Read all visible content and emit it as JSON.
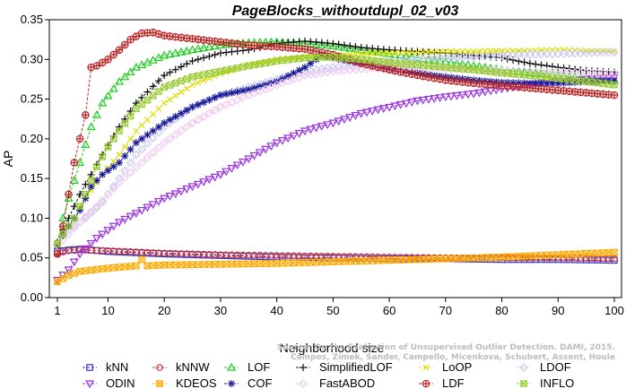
{
  "chart_data": {
    "type": "line",
    "title": "PageBlocks_withoutdupl_02_v03",
    "xlabel": "Neighborhood size",
    "ylabel": "AP",
    "xlim": [
      1,
      100
    ],
    "ylim": [
      0,
      0.35
    ],
    "x_ticks": [
      1,
      10,
      20,
      30,
      40,
      50,
      60,
      70,
      80,
      90,
      100
    ],
    "y_ticks": [
      "0.00",
      "0.05",
      "0.10",
      "0.15",
      "0.20",
      "0.25",
      "0.30",
      "0.35"
    ],
    "legend_position": "bottom",
    "credit": {
      "line1": "Source: On the Evaluation of Unsupervised Outlier Detection. DAMI, 2015.",
      "line2": "Campos, Zimek, Sander, Campello, Micenkova, Schubert, Assent, Houle"
    },
    "series": [
      {
        "name": "kNN",
        "color": "#3333cc",
        "marker": "square",
        "points": [
          [
            1,
            0.058
          ],
          [
            3,
            0.06
          ],
          [
            5,
            0.061
          ],
          [
            10,
            0.058
          ],
          [
            20,
            0.055
          ],
          [
            30,
            0.053
          ],
          [
            40,
            0.051
          ],
          [
            50,
            0.05
          ],
          [
            60,
            0.049
          ],
          [
            70,
            0.049
          ],
          [
            80,
            0.048
          ],
          [
            90,
            0.048
          ],
          [
            100,
            0.047
          ]
        ]
      },
      {
        "name": "kNNW",
        "color": "#cc3333",
        "marker": "circle",
        "points": [
          [
            1,
            0.056
          ],
          [
            3,
            0.059
          ],
          [
            5,
            0.06
          ],
          [
            10,
            0.059
          ],
          [
            20,
            0.056
          ],
          [
            30,
            0.054
          ],
          [
            40,
            0.053
          ],
          [
            50,
            0.052
          ],
          [
            60,
            0.051
          ],
          [
            70,
            0.05
          ],
          [
            80,
            0.05
          ],
          [
            90,
            0.05
          ],
          [
            100,
            0.049
          ]
        ]
      },
      {
        "name": "LOF",
        "color": "#22cc22",
        "marker": "triangle-up",
        "points": [
          [
            1,
            0.07
          ],
          [
            2,
            0.1
          ],
          [
            3,
            0.125
          ],
          [
            5,
            0.17
          ],
          [
            7,
            0.215
          ],
          [
            9,
            0.245
          ],
          [
            12,
            0.272
          ],
          [
            15,
            0.29
          ],
          [
            20,
            0.305
          ],
          [
            25,
            0.312
          ],
          [
            30,
            0.318
          ],
          [
            35,
            0.321
          ],
          [
            40,
            0.322
          ],
          [
            45,
            0.32
          ],
          [
            50,
            0.317
          ],
          [
            55,
            0.312
          ],
          [
            60,
            0.307
          ],
          [
            65,
            0.302
          ],
          [
            70,
            0.297
          ],
          [
            75,
            0.292
          ],
          [
            80,
            0.287
          ],
          [
            85,
            0.283
          ],
          [
            90,
            0.28
          ],
          [
            95,
            0.276
          ],
          [
            100,
            0.273
          ]
        ]
      },
      {
        "name": "SimplifiedLOF",
        "color": "#111111",
        "marker": "plus",
        "points": [
          [
            1,
            0.07
          ],
          [
            2,
            0.085
          ],
          [
            3,
            0.1
          ],
          [
            5,
            0.13
          ],
          [
            7,
            0.155
          ],
          [
            9,
            0.18
          ],
          [
            12,
            0.215
          ],
          [
            15,
            0.245
          ],
          [
            20,
            0.28
          ],
          [
            25,
            0.298
          ],
          [
            30,
            0.308
          ],
          [
            35,
            0.312
          ],
          [
            40,
            0.32
          ],
          [
            45,
            0.323
          ],
          [
            50,
            0.32
          ],
          [
            55,
            0.315
          ],
          [
            60,
            0.312
          ],
          [
            65,
            0.31
          ],
          [
            70,
            0.308
          ],
          [
            75,
            0.305
          ],
          [
            80,
            0.302
          ],
          [
            85,
            0.295
          ],
          [
            90,
            0.29
          ],
          [
            95,
            0.286
          ],
          [
            100,
            0.284
          ]
        ]
      },
      {
        "name": "LoOP",
        "color": "#dddd00",
        "marker": "cross",
        "points": [
          [
            1,
            0.068
          ],
          [
            2,
            0.08
          ],
          [
            4,
            0.1
          ],
          [
            6,
            0.125
          ],
          [
            9,
            0.155
          ],
          [
            12,
            0.18
          ],
          [
            15,
            0.21
          ],
          [
            20,
            0.245
          ],
          [
            25,
            0.268
          ],
          [
            30,
            0.282
          ],
          [
            35,
            0.293
          ],
          [
            40,
            0.3
          ],
          [
            45,
            0.303
          ],
          [
            50,
            0.305
          ],
          [
            55,
            0.307
          ],
          [
            60,
            0.308
          ],
          [
            65,
            0.309
          ],
          [
            70,
            0.31
          ],
          [
            75,
            0.31
          ],
          [
            80,
            0.311
          ],
          [
            85,
            0.311
          ],
          [
            90,
            0.312
          ],
          [
            95,
            0.311
          ],
          [
            100,
            0.31
          ]
        ]
      },
      {
        "name": "LDOF",
        "color": "#c9c9f0",
        "marker": "diamond",
        "points": [
          [
            1,
            0.07
          ],
          [
            2,
            0.08
          ],
          [
            4,
            0.09
          ],
          [
            6,
            0.1
          ],
          [
            9,
            0.12
          ],
          [
            12,
            0.15
          ],
          [
            15,
            0.18
          ],
          [
            20,
            0.215
          ],
          [
            25,
            0.24
          ],
          [
            30,
            0.255
          ],
          [
            35,
            0.265
          ],
          [
            40,
            0.275
          ],
          [
            45,
            0.285
          ],
          [
            50,
            0.29
          ],
          [
            55,
            0.295
          ],
          [
            60,
            0.298
          ],
          [
            65,
            0.3
          ],
          [
            70,
            0.302
          ],
          [
            75,
            0.303
          ],
          [
            80,
            0.305
          ],
          [
            85,
            0.306
          ],
          [
            90,
            0.307
          ],
          [
            95,
            0.308
          ],
          [
            100,
            0.309
          ]
        ]
      },
      {
        "name": "ODIN",
        "color": "#9933dd",
        "marker": "triangle-down",
        "points": [
          [
            1,
            0.022
          ],
          [
            3,
            0.035
          ],
          [
            5,
            0.055
          ],
          [
            8,
            0.075
          ],
          [
            12,
            0.095
          ],
          [
            16,
            0.11
          ],
          [
            20,
            0.125
          ],
          [
            25,
            0.14
          ],
          [
            30,
            0.155
          ],
          [
            35,
            0.175
          ],
          [
            40,
            0.195
          ],
          [
            45,
            0.21
          ],
          [
            50,
            0.22
          ],
          [
            55,
            0.232
          ],
          [
            60,
            0.24
          ],
          [
            65,
            0.248
          ],
          [
            70,
            0.253
          ],
          [
            75,
            0.257
          ],
          [
            80,
            0.263
          ],
          [
            85,
            0.268
          ],
          [
            90,
            0.272
          ],
          [
            95,
            0.275
          ],
          [
            100,
            0.278
          ]
        ]
      },
      {
        "name": "KDEOS",
        "color": "#ffaa00",
        "marker": "square-cross",
        "points": [
          [
            1,
            0.02
          ],
          [
            3,
            0.028
          ],
          [
            5,
            0.033
          ],
          [
            10,
            0.037
          ],
          [
            15,
            0.04
          ],
          [
            16,
            0.048
          ],
          [
            17,
            0.04
          ],
          [
            20,
            0.041
          ],
          [
            30,
            0.042
          ],
          [
            40,
            0.043
          ],
          [
            50,
            0.045
          ],
          [
            60,
            0.047
          ],
          [
            70,
            0.049
          ],
          [
            80,
            0.051
          ],
          [
            90,
            0.054
          ],
          [
            100,
            0.057
          ]
        ]
      },
      {
        "name": "COF",
        "color": "#1a1a99",
        "marker": "star",
        "points": [
          [
            1,
            0.065
          ],
          [
            2,
            0.078
          ],
          [
            3,
            0.09
          ],
          [
            5,
            0.11
          ],
          [
            7,
            0.14
          ],
          [
            9,
            0.155
          ],
          [
            12,
            0.17
          ],
          [
            15,
            0.195
          ],
          [
            20,
            0.22
          ],
          [
            25,
            0.24
          ],
          [
            30,
            0.255
          ],
          [
            35,
            0.262
          ],
          [
            40,
            0.272
          ],
          [
            45,
            0.29
          ],
          [
            48,
            0.305
          ],
          [
            50,
            0.302
          ],
          [
            55,
            0.295
          ],
          [
            60,
            0.288
          ],
          [
            65,
            0.283
          ],
          [
            70,
            0.278
          ],
          [
            75,
            0.274
          ],
          [
            80,
            0.271
          ],
          [
            85,
            0.27
          ],
          [
            90,
            0.27
          ],
          [
            95,
            0.272
          ],
          [
            100,
            0.273
          ]
        ]
      },
      {
        "name": "FastABOD",
        "color": "#f0c8f0",
        "marker": "diamond",
        "points": [
          [
            1,
            0.066
          ],
          [
            3,
            0.08
          ],
          [
            5,
            0.095
          ],
          [
            8,
            0.115
          ],
          [
            12,
            0.145
          ],
          [
            16,
            0.17
          ],
          [
            20,
            0.195
          ],
          [
            25,
            0.22
          ],
          [
            30,
            0.24
          ],
          [
            35,
            0.255
          ],
          [
            40,
            0.268
          ],
          [
            45,
            0.28
          ],
          [
            50,
            0.285
          ],
          [
            55,
            0.288
          ],
          [
            60,
            0.289
          ],
          [
            65,
            0.289
          ],
          [
            70,
            0.288
          ],
          [
            75,
            0.287
          ],
          [
            80,
            0.286
          ],
          [
            85,
            0.285
          ],
          [
            90,
            0.284
          ],
          [
            95,
            0.283
          ],
          [
            100,
            0.282
          ]
        ]
      },
      {
        "name": "LDF",
        "color": "#bb2222",
        "marker": "circle-plus",
        "points": [
          [
            1,
            0.055
          ],
          [
            2,
            0.09
          ],
          [
            3,
            0.13
          ],
          [
            4,
            0.17
          ],
          [
            5,
            0.2
          ],
          [
            6,
            0.23
          ],
          [
            7,
            0.29
          ],
          [
            8,
            0.292
          ],
          [
            10,
            0.3
          ],
          [
            12,
            0.312
          ],
          [
            14,
            0.325
          ],
          [
            16,
            0.333
          ],
          [
            18,
            0.334
          ],
          [
            20,
            0.33
          ],
          [
            25,
            0.326
          ],
          [
            30,
            0.322
          ],
          [
            35,
            0.318
          ],
          [
            40,
            0.316
          ],
          [
            45,
            0.313
          ],
          [
            50,
            0.306
          ],
          [
            55,
            0.295
          ],
          [
            60,
            0.287
          ],
          [
            65,
            0.28
          ],
          [
            70,
            0.274
          ],
          [
            75,
            0.27
          ],
          [
            80,
            0.267
          ],
          [
            85,
            0.264
          ],
          [
            90,
            0.261
          ],
          [
            95,
            0.258
          ],
          [
            100,
            0.255
          ]
        ]
      },
      {
        "name": "INFLO",
        "color": "#99cc33",
        "marker": "hourglass",
        "points": [
          [
            1,
            0.068
          ],
          [
            2,
            0.08
          ],
          [
            4,
            0.1
          ],
          [
            6,
            0.13
          ],
          [
            8,
            0.165
          ],
          [
            10,
            0.19
          ],
          [
            12,
            0.21
          ],
          [
            15,
            0.238
          ],
          [
            20,
            0.265
          ],
          [
            25,
            0.278
          ],
          [
            30,
            0.285
          ],
          [
            35,
            0.292
          ],
          [
            40,
            0.298
          ],
          [
            45,
            0.302
          ],
          [
            50,
            0.303
          ],
          [
            55,
            0.3
          ],
          [
            60,
            0.296
          ],
          [
            65,
            0.293
          ],
          [
            70,
            0.29
          ],
          [
            75,
            0.287
          ],
          [
            80,
            0.283
          ],
          [
            85,
            0.28
          ],
          [
            90,
            0.276
          ],
          [
            95,
            0.272
          ],
          [
            100,
            0.268
          ]
        ]
      }
    ],
    "legend_order": [
      "kNN",
      "kNNW",
      "LOF",
      "SimplifiedLOF",
      "LoOP",
      "LDOF",
      "ODIN",
      "KDEOS",
      "COF",
      "FastABOD",
      "LDF",
      "INFLO"
    ]
  }
}
